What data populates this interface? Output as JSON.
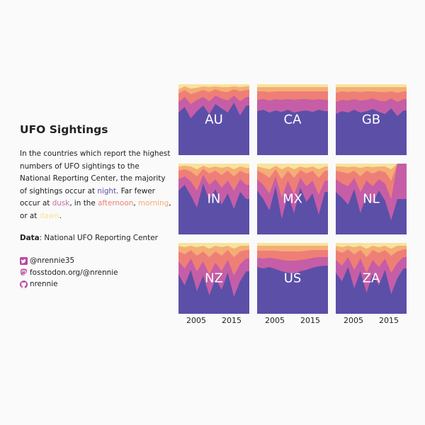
{
  "title": "UFO Sightings",
  "description": {
    "part1": "In the countries which report the highest numbers of UFO sightings to the National Reporting Center, the majority of sightings occur at ",
    "night": "night",
    "part2": ". Far fewer occur at ",
    "dusk": "dusk",
    "part3": ", in the ",
    "afternoon": "afternoon",
    "sep1": ", ",
    "morning": "morning",
    "part4": ", or at ",
    "dawn": "dawn",
    "part5": "."
  },
  "source": {
    "label": "Data",
    "text": ": National UFO Reporting Center"
  },
  "social": {
    "twitter": "@nrennie35",
    "mastodon": "fosstodon.org/@nrennie",
    "github": "nrennie"
  },
  "colors": {
    "night": "#5c4fa8",
    "dusk": "#c55ea6",
    "afternoon": "#ee7f76",
    "morning": "#f5ad76",
    "dawn": "#f6e49c",
    "icon": "#b94aa0"
  },
  "chart_data": {
    "type": "area",
    "stacked": "fill",
    "x": [
      1998,
      2000,
      2002,
      2004,
      2006,
      2008,
      2010,
      2012,
      2014,
      2016,
      2018,
      2020
    ],
    "xlim": [
      1998,
      2021
    ],
    "x_ticks": [
      "2005",
      "2015"
    ],
    "ylim": [
      0,
      1
    ],
    "series_order": [
      "night",
      "dusk",
      "afternoon",
      "morning",
      "dawn"
    ],
    "panels": [
      {
        "label": "AU",
        "shares": [
          [
            0.6,
            0.15,
            0.12,
            0.06,
            0.07
          ],
          [
            0.68,
            0.14,
            0.1,
            0.05,
            0.03
          ],
          [
            0.52,
            0.2,
            0.14,
            0.08,
            0.06
          ],
          [
            0.62,
            0.16,
            0.11,
            0.06,
            0.05
          ],
          [
            0.7,
            0.12,
            0.1,
            0.05,
            0.03
          ],
          [
            0.58,
            0.18,
            0.13,
            0.07,
            0.04
          ],
          [
            0.72,
            0.12,
            0.09,
            0.04,
            0.03
          ],
          [
            0.66,
            0.14,
            0.1,
            0.06,
            0.04
          ],
          [
            0.6,
            0.17,
            0.12,
            0.07,
            0.04
          ],
          [
            0.74,
            0.1,
            0.09,
            0.04,
            0.03
          ],
          [
            0.56,
            0.2,
            0.14,
            0.06,
            0.04
          ],
          [
            0.7,
            0.12,
            0.1,
            0.05,
            0.03
          ]
        ]
      },
      {
        "label": "CA",
        "shares": [
          [
            0.62,
            0.16,
            0.12,
            0.06,
            0.04
          ],
          [
            0.64,
            0.15,
            0.11,
            0.06,
            0.04
          ],
          [
            0.6,
            0.17,
            0.12,
            0.07,
            0.04
          ],
          [
            0.63,
            0.16,
            0.11,
            0.06,
            0.04
          ],
          [
            0.61,
            0.17,
            0.12,
            0.06,
            0.04
          ],
          [
            0.64,
            0.15,
            0.11,
            0.06,
            0.04
          ],
          [
            0.6,
            0.18,
            0.12,
            0.06,
            0.04
          ],
          [
            0.62,
            0.17,
            0.11,
            0.06,
            0.04
          ],
          [
            0.63,
            0.16,
            0.11,
            0.06,
            0.04
          ],
          [
            0.61,
            0.17,
            0.12,
            0.06,
            0.04
          ],
          [
            0.64,
            0.15,
            0.11,
            0.06,
            0.04
          ],
          [
            0.62,
            0.16,
            0.12,
            0.06,
            0.04
          ]
        ]
      },
      {
        "label": "GB",
        "shares": [
          [
            0.58,
            0.17,
            0.13,
            0.08,
            0.04
          ],
          [
            0.62,
            0.16,
            0.12,
            0.06,
            0.04
          ],
          [
            0.6,
            0.17,
            0.12,
            0.07,
            0.04
          ],
          [
            0.64,
            0.15,
            0.11,
            0.06,
            0.04
          ],
          [
            0.6,
            0.17,
            0.12,
            0.07,
            0.04
          ],
          [
            0.62,
            0.16,
            0.12,
            0.06,
            0.04
          ],
          [
            0.65,
            0.15,
            0.1,
            0.06,
            0.04
          ],
          [
            0.61,
            0.16,
            0.12,
            0.07,
            0.04
          ],
          [
            0.58,
            0.18,
            0.13,
            0.07,
            0.04
          ],
          [
            0.66,
            0.14,
            0.1,
            0.06,
            0.04
          ],
          [
            0.55,
            0.2,
            0.13,
            0.08,
            0.04
          ],
          [
            0.63,
            0.16,
            0.11,
            0.06,
            0.04
          ]
        ]
      },
      {
        "label": "IN",
        "shares": [
          [
            0.62,
            0.16,
            0.12,
            0.06,
            0.04
          ],
          [
            0.7,
            0.12,
            0.1,
            0.05,
            0.03
          ],
          [
            0.55,
            0.2,
            0.14,
            0.07,
            0.04
          ],
          [
            0.38,
            0.24,
            0.2,
            0.1,
            0.08
          ],
          [
            0.72,
            0.12,
            0.09,
            0.04,
            0.03
          ],
          [
            0.48,
            0.22,
            0.16,
            0.08,
            0.06
          ],
          [
            0.64,
            0.14,
            0.12,
            0.06,
            0.04
          ],
          [
            0.42,
            0.24,
            0.18,
            0.1,
            0.06
          ],
          [
            0.58,
            0.18,
            0.14,
            0.06,
            0.04
          ],
          [
            0.36,
            0.26,
            0.2,
            0.1,
            0.08
          ],
          [
            0.6,
            0.18,
            0.12,
            0.06,
            0.04
          ],
          [
            0.5,
            0.2,
            0.16,
            0.08,
            0.06
          ]
        ]
      },
      {
        "label": "MX",
        "shares": [
          [
            0.62,
            0.16,
            0.12,
            0.06,
            0.04
          ],
          [
            0.5,
            0.2,
            0.16,
            0.08,
            0.06
          ],
          [
            0.34,
            0.24,
            0.22,
            0.12,
            0.08
          ],
          [
            0.68,
            0.14,
            0.1,
            0.05,
            0.03
          ],
          [
            0.22,
            0.3,
            0.26,
            0.14,
            0.08
          ],
          [
            0.56,
            0.2,
            0.14,
            0.06,
            0.04
          ],
          [
            0.3,
            0.26,
            0.24,
            0.12,
            0.08
          ],
          [
            0.66,
            0.14,
            0.11,
            0.05,
            0.04
          ],
          [
            0.46,
            0.22,
            0.18,
            0.08,
            0.06
          ],
          [
            0.58,
            0.18,
            0.14,
            0.06,
            0.04
          ],
          [
            0.28,
            0.28,
            0.24,
            0.12,
            0.08
          ],
          [
            0.6,
            0.16,
            0.14,
            0.06,
            0.04
          ]
        ]
      },
      {
        "label": "NL",
        "shares": [
          [
            0.6,
            0.18,
            0.12,
            0.06,
            0.04
          ],
          [
            0.52,
            0.2,
            0.16,
            0.08,
            0.04
          ],
          [
            0.42,
            0.26,
            0.18,
            0.09,
            0.05
          ],
          [
            0.64,
            0.16,
            0.1,
            0.06,
            0.04
          ],
          [
            0.3,
            0.3,
            0.22,
            0.12,
            0.06
          ],
          [
            0.56,
            0.2,
            0.14,
            0.06,
            0.04
          ],
          [
            0.44,
            0.24,
            0.18,
            0.09,
            0.05
          ],
          [
            0.62,
            0.16,
            0.12,
            0.06,
            0.04
          ],
          [
            0.48,
            0.24,
            0.16,
            0.08,
            0.04
          ],
          [
            0.2,
            0.3,
            0.26,
            0.16,
            0.08
          ],
          [
            0.5,
            0.5,
            0.0,
            0.0,
            0.0
          ],
          [
            0.5,
            0.5,
            0.0,
            0.0,
            0.0
          ]
        ]
      },
      {
        "label": "NZ",
        "shares": [
          [
            0.56,
            0.18,
            0.14,
            0.08,
            0.04
          ],
          [
            0.4,
            0.24,
            0.2,
            0.1,
            0.06
          ],
          [
            0.62,
            0.16,
            0.12,
            0.06,
            0.04
          ],
          [
            0.32,
            0.28,
            0.22,
            0.12,
            0.06
          ],
          [
            0.54,
            0.2,
            0.14,
            0.08,
            0.04
          ],
          [
            0.26,
            0.3,
            0.24,
            0.12,
            0.08
          ],
          [
            0.5,
            0.22,
            0.16,
            0.08,
            0.04
          ],
          [
            0.34,
            0.26,
            0.22,
            0.12,
            0.06
          ],
          [
            0.58,
            0.18,
            0.14,
            0.06,
            0.04
          ],
          [
            0.24,
            0.3,
            0.26,
            0.12,
            0.08
          ],
          [
            0.46,
            0.24,
            0.18,
            0.08,
            0.04
          ],
          [
            0.6,
            0.18,
            0.12,
            0.06,
            0.04
          ]
        ]
      },
      {
        "label": "US",
        "shares": [
          [
            0.66,
            0.13,
            0.1,
            0.07,
            0.04
          ],
          [
            0.64,
            0.14,
            0.11,
            0.07,
            0.04
          ],
          [
            0.66,
            0.13,
            0.1,
            0.07,
            0.04
          ],
          [
            0.63,
            0.15,
            0.11,
            0.07,
            0.04
          ],
          [
            0.6,
            0.16,
            0.12,
            0.08,
            0.04
          ],
          [
            0.58,
            0.17,
            0.13,
            0.08,
            0.04
          ],
          [
            0.57,
            0.18,
            0.13,
            0.08,
            0.04
          ],
          [
            0.6,
            0.16,
            0.12,
            0.08,
            0.04
          ],
          [
            0.62,
            0.15,
            0.12,
            0.07,
            0.04
          ],
          [
            0.65,
            0.14,
            0.11,
            0.06,
            0.04
          ],
          [
            0.67,
            0.13,
            0.1,
            0.06,
            0.04
          ],
          [
            0.68,
            0.12,
            0.1,
            0.06,
            0.04
          ]
        ]
      },
      {
        "label": "ZA",
        "shares": [
          [
            0.58,
            0.18,
            0.14,
            0.06,
            0.04
          ],
          [
            0.46,
            0.22,
            0.18,
            0.08,
            0.06
          ],
          [
            0.66,
            0.14,
            0.11,
            0.05,
            0.04
          ],
          [
            0.36,
            0.26,
            0.22,
            0.1,
            0.06
          ],
          [
            0.6,
            0.18,
            0.12,
            0.06,
            0.04
          ],
          [
            0.3,
            0.28,
            0.22,
            0.12,
            0.08
          ],
          [
            0.56,
            0.2,
            0.14,
            0.06,
            0.04
          ],
          [
            0.4,
            0.26,
            0.2,
            0.08,
            0.06
          ],
          [
            0.62,
            0.16,
            0.12,
            0.06,
            0.04
          ],
          [
            0.28,
            0.3,
            0.24,
            0.1,
            0.08
          ],
          [
            0.5,
            0.22,
            0.16,
            0.08,
            0.04
          ],
          [
            0.64,
            0.16,
            0.11,
            0.05,
            0.04
          ]
        ]
      }
    ]
  }
}
